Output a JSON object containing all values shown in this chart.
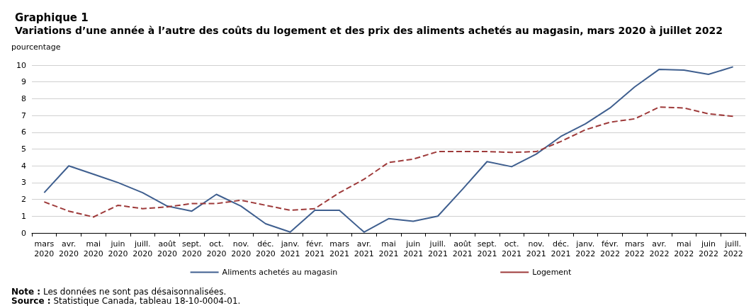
{
  "chart_data": {
    "type": "line",
    "title": "Graphique 1",
    "subtitle": "Variations d’une année à l’autre des coûts du logement et des prix des aliments achetés au magasin, mars 2020 à juillet 2022",
    "ylabel": "pourcentage",
    "categories": [
      "mars 2020",
      "avr. 2020",
      "mai 2020",
      "juin 2020",
      "juill. 2020",
      "août 2020",
      "sept. 2020",
      "oct. 2020",
      "nov. 2020",
      "déc. 2020",
      "janv. 2021",
      "févr. 2021",
      "mars 2021",
      "avr. 2021",
      "mai 2021",
      "juin 2021",
      "juill. 2021",
      "août 2021",
      "sept. 2021",
      "oct. 2021",
      "nov. 2021",
      "déc. 2021",
      "janv. 2022",
      "févr. 2022",
      "mars 2022",
      "avr. 2022",
      "mai 2022",
      "juin 2022",
      "juill. 2022"
    ],
    "series": [
      {
        "name": "Aliments achetés au magasin",
        "color": "#3f5f8f",
        "line_style": "solid",
        "values": [
          2.4,
          4.0,
          3.5,
          3.0,
          2.4,
          1.6,
          1.3,
          2.3,
          1.6,
          0.55,
          0.05,
          1.35,
          1.35,
          0.05,
          0.85,
          0.7,
          1.0,
          2.6,
          4.25,
          3.95,
          4.7,
          5.75,
          6.5,
          7.45,
          8.7,
          9.75,
          9.7,
          9.45,
          9.9
        ]
      },
      {
        "name": "Logement",
        "color": "#9e3a3a",
        "line_style": "dashed",
        "values": [
          1.85,
          1.3,
          0.95,
          1.65,
          1.45,
          1.55,
          1.75,
          1.75,
          1.95,
          1.65,
          1.35,
          1.45,
          2.4,
          3.2,
          4.2,
          4.4,
          4.85,
          4.85,
          4.85,
          4.8,
          4.85,
          5.45,
          6.15,
          6.6,
          6.8,
          7.5,
          7.45,
          7.1,
          6.95
        ]
      }
    ],
    "ylim": [
      0,
      10
    ],
    "yticks": [
      0,
      1,
      2,
      3,
      4,
      5,
      6,
      7,
      8,
      9,
      10
    ],
    "grid": "y",
    "legend": "bottom",
    "marker": "none",
    "annotations": [
      "Note : Les données ne sont pas désaisonnalisées.",
      "Source : Statistique Canada, tableau 18-10-0004-01."
    ]
  }
}
